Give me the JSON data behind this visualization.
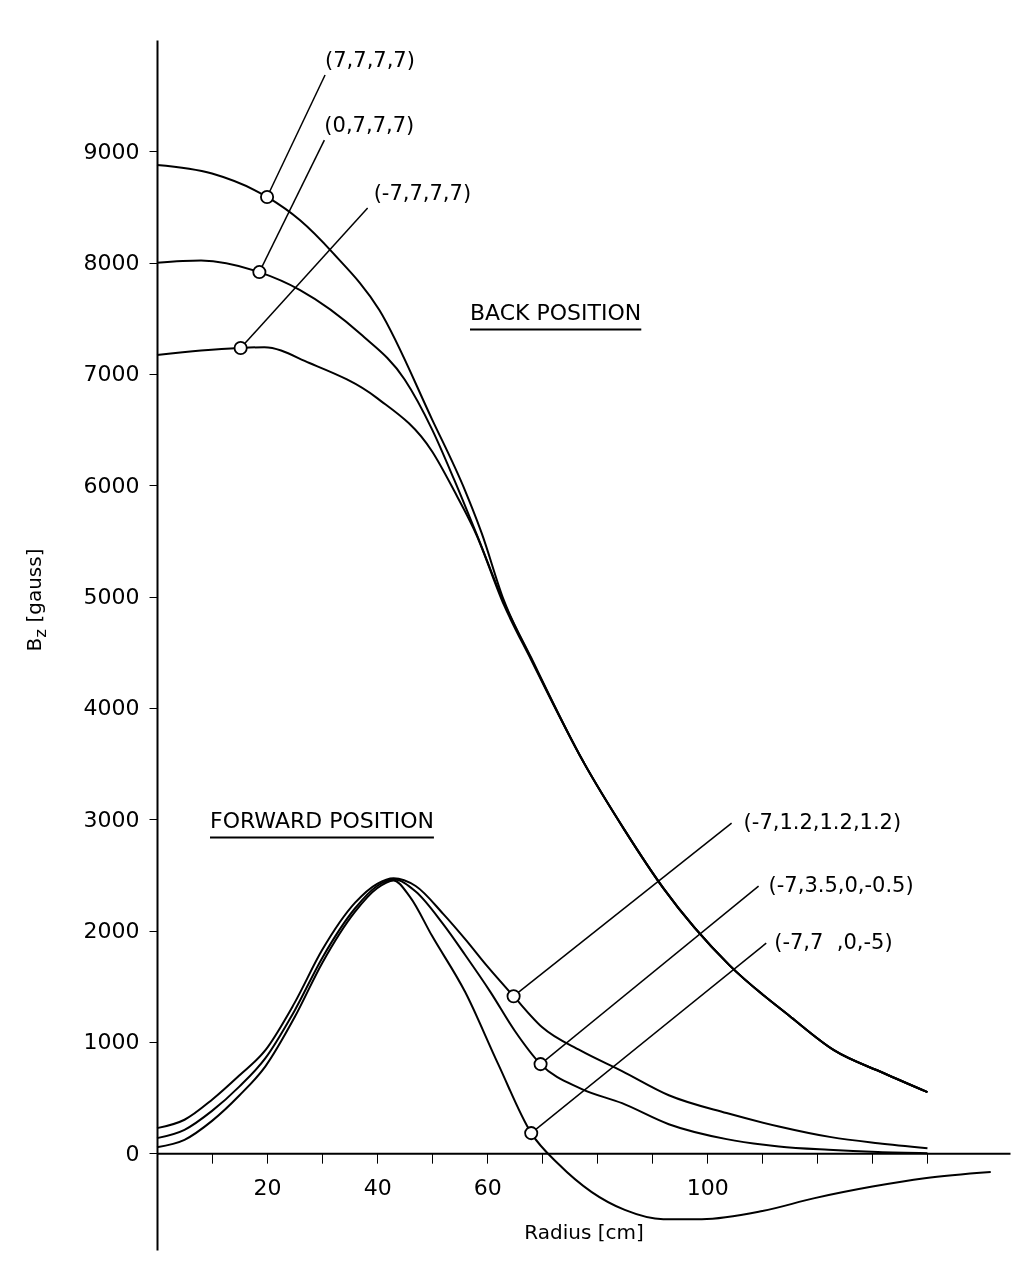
{
  "chart_data": {
    "type": "line",
    "xlabel": "Radius [cm]",
    "ylabel": "B$_{z}$ [gauss]",
    "xlim": [
      0,
      155
    ],
    "ylim": [
      -870,
      10000
    ],
    "xticks": [
      {
        "value": 10,
        "label": null
      },
      20,
      {
        "value": 30,
        "label": null
      },
      40,
      {
        "value": 50,
        "label": null
      },
      60,
      {
        "value": 70,
        "label": null
      },
      {
        "value": 80,
        "label": null
      },
      {
        "value": 90,
        "label": null
      },
      100,
      {
        "value": 110,
        "label": null
      },
      {
        "value": 120,
        "label": null
      },
      {
        "value": 130,
        "label": null
      },
      {
        "value": 140,
        "label": null
      }
    ],
    "yticks": [
      0,
      1000,
      2000,
      3000,
      4000,
      5000,
      6000,
      7000,
      8000,
      9000
    ],
    "line_style": "solid",
    "series": [
      {
        "color": "#000000",
        "x": [
          0,
          10,
          20,
          26,
          32,
          40.4,
          50,
          56,
          59,
          63,
          68,
          77.5,
          85,
          92,
          104,
          115,
          123,
          132,
          140
        ],
        "values": [
          8877,
          8800,
          8590,
          8380,
          8085,
          7574,
          6590,
          5950,
          5570,
          4970,
          4450,
          3513,
          2900,
          2381,
          1689,
          1230,
          925,
          720,
          548
        ]
      },
      {
        "color": "#000000",
        "x": [
          0,
          8,
          18.6,
          26,
          37,
          45,
          50,
          54,
          58,
          63,
          68,
          77.5,
          85,
          92,
          104,
          115,
          123,
          132,
          140
        ],
        "values": [
          8000,
          8020,
          7915,
          7754,
          7358,
          6950,
          6500,
          6050,
          5570,
          4950,
          4440,
          3513,
          2900,
          2381,
          1689,
          1230,
          925,
          720,
          548
        ]
      },
      {
        "color": "#000000",
        "x": [
          0,
          8,
          15,
          19.5,
          27.7,
          40,
          50,
          54,
          58,
          63,
          68,
          77.5,
          85,
          92,
          104,
          115,
          123,
          132,
          140
        ],
        "values": [
          7170,
          7210,
          7233,
          7240,
          7098,
          6783,
          6303,
          5950,
          5560,
          4930,
          4430,
          3513,
          2900,
          2381,
          1689,
          1230,
          925,
          720,
          548
        ]
      },
      {
        "color": "#000000",
        "x": [
          0,
          5,
          10,
          15,
          19.7,
          25,
          30,
          36,
          40,
          43,
          47,
          52,
          56,
          60,
          64.8,
          70,
          77,
          84.5,
          93,
          103.5,
          113,
          122.5,
          131,
          140
        ],
        "values": [
          225,
          300,
          480,
          700,
          925,
          1350,
          1824,
          2250,
          2420,
          2470,
          2400,
          2150,
          1923,
          1680,
          1410,
          1130,
          920,
          737,
          520,
          360,
          240,
          144,
          90,
          45
        ]
      },
      {
        "color": "#000000",
        "x": [
          0,
          5,
          10,
          15,
          19.7,
          25,
          30,
          36,
          40,
          43,
          47,
          52,
          56,
          60.6,
          65,
          69.7,
          77,
          84.5,
          93,
          103.5,
          113,
          122,
          131,
          140
        ],
        "values": [
          135,
          210,
          380,
          600,
          853,
          1280,
          1752,
          2200,
          2400,
          2460,
          2350,
          2057,
          1780,
          1447,
          1100,
          800,
          580,
          449,
          260,
          126,
          60,
          30,
          10,
          0
        ]
      },
      {
        "color": "#000000",
        "x": [
          0,
          5,
          10,
          15,
          19.7,
          25,
          30,
          36,
          40,
          43,
          46,
          50,
          56,
          62,
          68,
          73,
          79,
          85,
          92,
          99,
          110,
          119.5,
          130,
          139.5,
          151.5
        ],
        "values": [
          54,
          120,
          290,
          520,
          780,
          1220,
          1707,
          2170,
          2380,
          2450,
          2300,
          1950,
          1447,
          800,
          180,
          -100,
          -350,
          -510,
          -593,
          -593,
          -520,
          -404,
          -300,
          -225,
          -170
        ]
      }
    ],
    "annotations": [
      "BACK POSITION",
      "FORWARD POSITION",
      {
        "text": "(7,7,7,7)",
        "x": 20,
        "y": 8590
      },
      {
        "text": "(0,7,7,7)",
        "x": 18.6,
        "y": 7915
      },
      {
        "text": "(-7,7,7,7)",
        "x": 15.2,
        "y": 7233
      },
      {
        "text": "(-7,1.2,1.2,1.2)",
        "x": 64.8,
        "y": 1410
      },
      {
        "text": "(-7,3.5,0,-0.5)",
        "x": 69.7,
        "y": 800
      },
      {
        "text": "(-7,7  ,0,-5)",
        "x": 68,
        "y": 180
      }
    ]
  }
}
